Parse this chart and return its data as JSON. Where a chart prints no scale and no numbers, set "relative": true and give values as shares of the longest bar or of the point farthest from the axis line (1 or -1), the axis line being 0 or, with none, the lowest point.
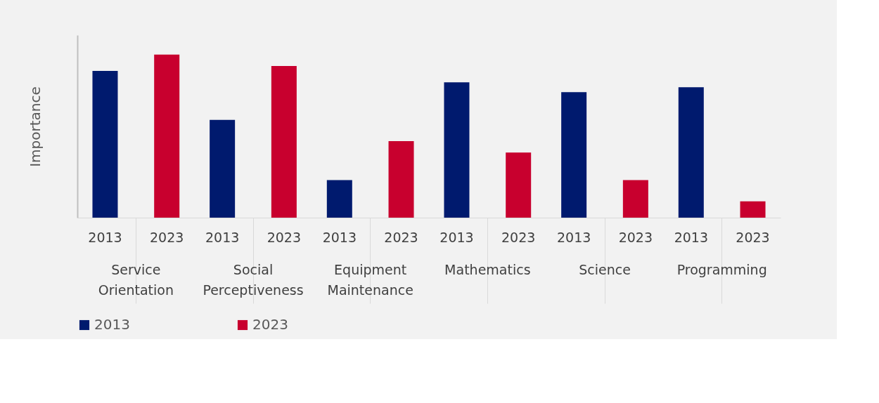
{
  "chart_data": {
    "type": "bar",
    "ylabel": "Importance",
    "relative": true,
    "legend": "bottom",
    "grid": false,
    "categories": [
      "Service Orientation",
      "Social Perceptiveness",
      "Equipment Maintenance",
      "Mathematics",
      "Science",
      "Programming"
    ],
    "series": [
      {
        "name": "2013",
        "color": "#001a6e",
        "values": [
          0.9,
          0.6,
          0.23,
          0.83,
          0.77,
          0.8
        ]
      },
      {
        "name": "2023",
        "color": "#c8002e",
        "values": [
          1,
          0.93,
          0.47,
          0.4,
          0.23,
          0.1
        ]
      }
    ]
  }
}
